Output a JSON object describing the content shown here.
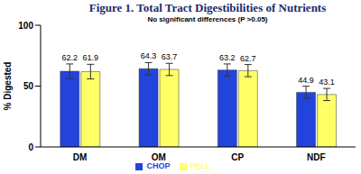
{
  "chart_data": {
    "type": "bar",
    "title": "Figure 1. Total Tract Digestibilities of Nutrients",
    "subtitle": "No significant differences (P >0.05)",
    "y_label": "% Digested",
    "categories": [
      "DM",
      "OM",
      "CP",
      "NDF"
    ],
    "series": [
      {
        "name": "CHOP",
        "color": "#2244dd",
        "values": [
          62.2,
          64.3,
          63.2,
          44.9
        ],
        "error": [
          6,
          5,
          5,
          5
        ]
      },
      {
        "name": "PELL",
        "color": "#ffff66",
        "values": [
          61.9,
          63.7,
          62.7,
          43.1
        ],
        "error": [
          6,
          5,
          5,
          5
        ]
      }
    ],
    "ylim": [
      0,
      100
    ],
    "yticks": [
      0,
      50,
      100
    ],
    "grid": false,
    "legend": "bottom",
    "data_labels": true
  }
}
